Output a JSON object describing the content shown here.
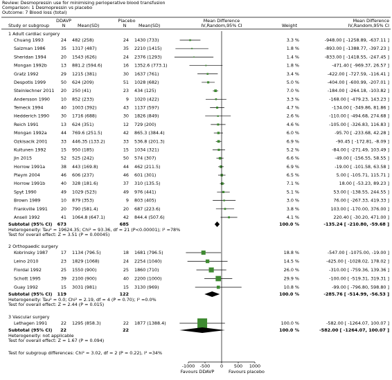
{
  "chart_data": {
    "type": "forest",
    "header": [
      "Review:  Desmopressin use for minimising perioperative blood transfusion",
      "Comparison:  1 Desmopressin vs placebo",
      "Outcome:  7 Blood loss (total)"
    ],
    "columns": {
      "study": "Study or subgroup",
      "group1": "DDAVP",
      "n1": "N",
      "ms1": "Mean(SD)",
      "group2": "Placebo",
      "n2": "N",
      "ms2": "Mean(SD)",
      "plot1": "Mean Difference",
      "plot2": "IV,Random,95% CI",
      "weight": "Weight",
      "md1": "Mean Difference",
      "md2": "IV,Random,95% CI"
    },
    "box_color": "#3f8a32",
    "groups": [
      {
        "title": "1 Adult cardiac surgery",
        "rows": [
          {
            "study": "Chuang 1993",
            "n1": 24,
            "ms1": "482 (258)",
            "n2": 24,
            "ms2": "1430 (733)",
            "weight": 3.3,
            "weight_label": "3.3 %",
            "md": -948,
            "lo": -1258.89,
            "hi": -637.11,
            "ci_label": "-948.00 [ -1258.89, -637.11 ]"
          },
          {
            "study": "Salzman 1986",
            "n1": 35,
            "ms1": "1317 (487)",
            "n2": 35,
            "ms2": "2210 (1415)",
            "weight": 1.8,
            "weight_label": "1.8 %",
            "md": -893,
            "lo": -1388.77,
            "hi": -397.23,
            "ci_label": "-893.00 [ -1388.77, -397.23 ]"
          },
          {
            "study": "Sheridan 1994",
            "n1": 20,
            "ms1": "1543 (626)",
            "n2": 24,
            "ms2": "2376 (1293)",
            "weight": 1.4,
            "weight_label": "1.4 %",
            "md": -833,
            "lo": -1418.55,
            "hi": -247.45,
            "ci_label": "-833.00 [ -1418.55, -247.45 ]"
          },
          {
            "study": "Mongan 1992b",
            "n1": 13,
            "ms1": "881.2 (594.6)",
            "n2": 16,
            "ms2": "1352.6 (773.1)",
            "weight": 1.8,
            "weight_label": "1.8 %",
            "md": -471.4,
            "lo": -969.37,
            "hi": 26.57,
            "ci_label": "-471.40 [ -969.37, 26.57 ]"
          },
          {
            "study": "Gratz 1992",
            "n1": 29,
            "ms1": "1215 (381)",
            "n2": 30,
            "ms2": "1637 (761)",
            "weight": 3.4,
            "weight_label": "3.4 %",
            "md": -422,
            "lo": -727.59,
            "hi": -116.41,
            "ci_label": "-422.00 [ -727.59, -116.41 ]"
          },
          {
            "study": "Despotis 1999",
            "n1": 50,
            "ms1": "624 (209)",
            "n2": 51,
            "ms2": "1028 (682)",
            "weight": 5.0,
            "weight_label": "5.0 %",
            "md": -404,
            "lo": -600.99,
            "hi": -207.01,
            "ci_label": "-404.00 [ -600.99, -207.01 ]"
          },
          {
            "study": "Steinlechner 2011",
            "n1": 20,
            "ms1": "250 (41)",
            "n2": 23,
            "ms2": "434 (125)",
            "weight": 7.0,
            "weight_label": "7.0 %",
            "md": -184,
            "lo": -264.18,
            "hi": -103.82,
            "ci_label": "-184.00 [ -264.18, -103.82 ]"
          },
          {
            "study": "Andersson 1990",
            "n1": 10,
            "ms1": "852 (233)",
            "n2": 9,
            "ms2": "1020 (422)",
            "weight": 3.3,
            "weight_label": "3.3 %",
            "md": -168,
            "lo": -479.23,
            "hi": 143.23,
            "ci_label": "-168.00 [ -479.23, 143.23 ]"
          },
          {
            "study": "Temeck 1994",
            "n1": 40,
            "ms1": "1003 (392)",
            "n2": 43,
            "ms2": "1137 (597)",
            "weight": 4.7,
            "weight_label": "4.7 %",
            "md": -134,
            "lo": -349.86,
            "hi": 81.86,
            "ci_label": "-134.00 [ -349.86, 81.86 ]"
          },
          {
            "study": "Hedderich 1990",
            "n1": 30,
            "ms1": "1716 (688)",
            "n2": 30,
            "ms2": "1826 (849)",
            "weight": 2.6,
            "weight_label": "2.6 %",
            "md": -110,
            "lo": -494.68,
            "hi": 274.68,
            "ci_label": "-110.00 [ -494.68, 274.68 ]"
          },
          {
            "study": "Reich 1991",
            "n1": 13,
            "ms1": "624 (351)",
            "n2": 12,
            "ms2": "729 (200)",
            "weight": 4.6,
            "weight_label": "4.6 %",
            "md": -105,
            "lo": -326.83,
            "hi": 116.83,
            "ci_label": "-105.00 [ -326.83, 116.83 ]"
          },
          {
            "study": "Mongan 1992a",
            "n1": 44,
            "ms1": "769.6 (251.5)",
            "n2": 42,
            "ms2": "865.3 (384.4)",
            "weight": 6.0,
            "weight_label": "6.0 %",
            "md": -95.7,
            "lo": -233.68,
            "hi": 42.28,
            "ci_label": "-95.70 [ -233.68, 42.28 ]"
          },
          {
            "study": "Ozkisacik 2001",
            "n1": 33,
            "ms1": "446.35 (133.2)",
            "n2": 33,
            "ms2": "536.8 (201.3)",
            "weight": 6.9,
            "weight_label": "6.9 %",
            "md": -90.45,
            "lo": -172.81,
            "hi": -8.09,
            "ci_label": "-90.45 [ -172.81, -8.09 ]"
          },
          {
            "study": "Kuitunen 1992",
            "n1": 15,
            "ms1": "950 (185)",
            "n2": 15,
            "ms2": "1034 (321)",
            "weight": 5.2,
            "weight_label": "5.2 %",
            "md": -84,
            "lo": -271.49,
            "hi": 103.49,
            "ci_label": "-84.00 [ -271.49, 103.49 ]"
          },
          {
            "study": "Jin 2015",
            "n1": 52,
            "ms1": "525 (242)",
            "n2": 50,
            "ms2": "574 (307)",
            "weight": 6.6,
            "weight_label": "6.6 %",
            "md": -49,
            "lo": -156.55,
            "hi": 58.55,
            "ci_label": "-49.00 [ -156.55, 58.55 ]"
          },
          {
            "study": "Horrow 1991a",
            "n1": 38,
            "ms1": "443 (169.8)",
            "n2": 44,
            "ms2": "462 (211.5)",
            "weight": 6.9,
            "weight_label": "6.9 %",
            "md": -19,
            "lo": -101.58,
            "hi": 63.58,
            "ci_label": "-19.00 [ -101.58, 63.58 ]"
          },
          {
            "study": "Pleym 2004",
            "n1": 46,
            "ms1": "606 (237)",
            "n2": 46,
            "ms2": "601 (301)",
            "weight": 6.5,
            "weight_label": "6.5 %",
            "md": 5,
            "lo": -105.71,
            "hi": 115.71,
            "ci_label": "5.00 [ -105.71, 115.71 ]"
          },
          {
            "study": "Horrow 1991b",
            "n1": 40,
            "ms1": "328 (181.6)",
            "n2": 37,
            "ms2": "310 (135.5)",
            "weight": 7.1,
            "weight_label": "7.1 %",
            "md": 18,
            "lo": -53.23,
            "hi": 89.23,
            "ci_label": "18.00 [ -53.23, 89.23 ]"
          },
          {
            "study": "Spyt 1990",
            "n1": 49,
            "ms1": "1029 (523)",
            "n2": 49,
            "ms2": "976 (441)",
            "weight": 5.1,
            "weight_label": "5.1 %",
            "md": 53,
            "lo": -138.55,
            "hi": 244.55,
            "ci_label": "53.00 [ -138.55, 244.55 ]"
          },
          {
            "study": "Brown 1989",
            "n1": 10,
            "ms1": "879 (353)",
            "n2": 9,
            "ms2": "803 (405)",
            "weight": 3.0,
            "weight_label": "3.0 %",
            "md": 76,
            "lo": -267.33,
            "hi": 419.33,
            "ci_label": "76.00 [ -267.33, 419.33 ]"
          },
          {
            "study": "Frankville 1991",
            "n1": 20,
            "ms1": "790 (581.4)",
            "n2": 20,
            "ms2": "687 (223.6)",
            "weight": 3.8,
            "weight_label": "3.8 %",
            "md": 103,
            "lo": -170,
            "hi": 376,
            "ci_label": "103.00 [ -170.00, 376.00 ]"
          },
          {
            "study": "Ansell 1992",
            "n1": 41,
            "ms1": "1064.8 (647.1)",
            "n2": 42,
            "ms2": "844.4 (507.6)",
            "weight": 4.1,
            "weight_label": "4.1 %",
            "md": 220.4,
            "lo": -30.2,
            "hi": 471,
            "ci_label": "220.40 [ -30.20, 471.00 ]"
          }
        ],
        "subtotal": {
          "label": "Subtotal (95% CI)",
          "n1": 673,
          "n2": 685,
          "weight_label": "100.0 %",
          "md": -135.24,
          "lo": -210.8,
          "hi": -59.68,
          "ci_label": "-135.24 [ -210.80, -59.68 ]"
        },
        "heterogeneity": "Heterogeneity: Tau² = 19624.35; Chi² = 93.36, df = 21 (P<0.00001); I² =78%",
        "overall": "Test for overall effect: Z = 3.51 (P = 0.00045)"
      },
      {
        "title": "2 Orthopaedic surgery",
        "rows": [
          {
            "study": "Kobrinsky 1987",
            "n1": 17,
            "ms1": "1134 (796.5)",
            "n2": 18,
            "ms2": "1681 (796.5)",
            "weight": 18.8,
            "weight_label": "18.8 %",
            "md": -547,
            "lo": -1075,
            "hi": -19,
            "ci_label": "-547.00 [ -1075.00, -19.00 ]"
          },
          {
            "study": "Leino 2010",
            "n1": 23,
            "ms1": "1829 (1068)",
            "n2": 24,
            "ms2": "2254 (1040)",
            "weight": 14.5,
            "weight_label": "14.5 %",
            "md": -425,
            "lo": -1028.02,
            "hi": 178.02,
            "ci_label": "-425.00 [ -1028.02, 178.02 ]"
          },
          {
            "study": "Flordal 1992",
            "n1": 25,
            "ms1": "1550 (900)",
            "n2": 25,
            "ms2": "1860 (710)",
            "weight": 26.0,
            "weight_label": "26.0 %",
            "md": -310,
            "lo": -759.36,
            "hi": 139.36,
            "ci_label": "-310.00 [ -759.36, 139.36 ]"
          },
          {
            "study": "Schott 1995",
            "n1": 39,
            "ms1": "2100 (900)",
            "n2": 40,
            "ms2": "2200 (1000)",
            "weight": 29.9,
            "weight_label": "29.9 %",
            "md": -100,
            "lo": -519.31,
            "hi": 319.31,
            "ci_label": "-100.00 [ -519.31, 319.31 ]"
          },
          {
            "study": "Guay 1992",
            "n1": 15,
            "ms1": "3031 (981)",
            "n2": 15,
            "ms2": "3130 (969)",
            "weight": 10.8,
            "weight_label": "10.8 %",
            "md": -99,
            "lo": -796.8,
            "hi": 598.8,
            "ci_label": "-99.00 [ -796.80, 598.80 ]"
          }
        ],
        "subtotal": {
          "label": "Subtotal (95% CI)",
          "n1": 119,
          "n2": 122,
          "weight_label": "100.0 %",
          "md": -285.76,
          "lo": -514.99,
          "hi": -56.53,
          "ci_label": "-285.76 [ -514.99, -56.53 ]"
        },
        "heterogeneity": "Heterogeneity: Tau² = 0.0; Chi² = 2.19, df = 4 (P = 0.70); I² =0.0%",
        "overall": "Test for overall effect: Z = 2.44 (P = 0.015)"
      },
      {
        "title": "3 Vascular surgery",
        "rows": [
          {
            "study": "Lethagen 1991",
            "n1": 22,
            "ms1": "1295 (858.3)",
            "n2": 22,
            "ms2": "1877 (1388.4)",
            "weight": 100.0,
            "weight_label": "100.0 %",
            "md": -582,
            "lo": -1264.07,
            "hi": 100.07,
            "ci_label": "-582.00 [ -1264.07, 100.07 ]"
          }
        ],
        "subtotal": {
          "label": "Subtotal (95% CI)",
          "n1": 22,
          "n2": 22,
          "weight_label": "100.0 %",
          "md": -582,
          "lo": -1264.07,
          "hi": 100.07,
          "ci_label": "-582.00 [ -1264.07, 100.07 ]"
        },
        "heterogeneity": "Heterogeneity: not applicable",
        "overall": "Test for overall effect: Z = 1.67 (P = 0.094)"
      }
    ],
    "subgroup_test": "Test for subgroup differences: Chi² = 3.02, df = 2 (P = 0.22), I² =34%",
    "xlim": [
      -1000,
      1000
    ],
    "xticks": [
      -1000,
      -500,
      0,
      500,
      1000
    ],
    "favours_left": "Favours DDAVP",
    "favours_right": "Favours placebo"
  }
}
